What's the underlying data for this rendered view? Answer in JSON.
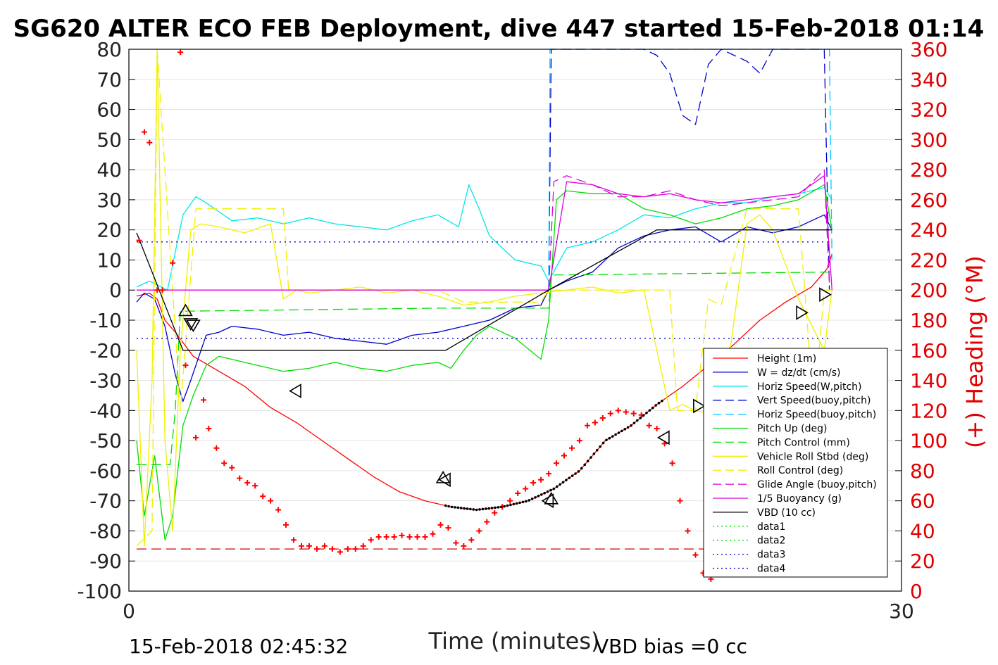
{
  "chart_data": {
    "type": "line",
    "title": "SG620 ALTER ECO FEB Deployment, dive 447 started 15-Feb-2018 01:14",
    "xlabel": "Time (minutes)",
    "ylabel_right": "(+) Heading (°M)",
    "xlim": [
      0,
      30
    ],
    "ylim_left": [
      -100,
      80
    ],
    "ylim_right": [
      0,
      360
    ],
    "x_ticks": [
      "0",
      "30"
    ],
    "y_ticks_left": [
      "80",
      "70",
      "60",
      "50",
      "40",
      "30",
      "20",
      "10",
      "0",
      "-10",
      "-20",
      "-30",
      "-40",
      "-50",
      "-60",
      "-70",
      "-80",
      "-90",
      "-100"
    ],
    "y_ticks_right": [
      "360",
      "340",
      "320",
      "300",
      "280",
      "260",
      "240",
      "220",
      "200",
      "180",
      "160",
      "140",
      "120",
      "100",
      "80",
      "60",
      "40",
      "20",
      "0"
    ],
    "grid": "horizontal",
    "legend_position": "bottom-right",
    "footer_left": "15-Feb-2018 02:45:32",
    "footer_right": "VBD bias =0 cc",
    "colors": {
      "height": "#ff0000",
      "w": "#0000cc",
      "horiz_speed_w": "#00e6e6",
      "vert_speed_buoy": "#0000cc",
      "horiz_speed_buoy": "#00c8ff",
      "pitch_up": "#00dd00",
      "pitch_control": "#00dd00",
      "roll": "#f0f000",
      "roll_control": "#f0f000",
      "glide_angle": "#dd00dd",
      "buoyancy": "#dd00dd",
      "vbd": "#000000",
      "heading": "#ff0000"
    },
    "series": [
      {
        "name": "Height (1m)",
        "color": "#ff0000",
        "dash": "solid",
        "x": [
          0.3,
          0.8,
          1.1,
          1.4,
          1.8,
          2.5,
          3.5,
          4.5,
          5.5,
          6.5,
          7.5,
          8.5,
          9.5,
          10.5,
          11.5,
          12.5,
          13.5,
          14.5,
          15.5,
          16.5,
          17.5,
          18.5,
          19.5,
          20.5,
          21.5,
          22.5,
          23.5,
          24.5,
          25.5,
          26.5,
          27.1,
          27.3
        ],
        "y": [
          -2,
          -1,
          -3,
          -10,
          -14,
          -22,
          -27,
          -32,
          -39,
          -44,
          -50,
          -56,
          -62,
          -67,
          -70,
          -72,
          -73,
          -72,
          -70,
          -66,
          -60,
          -50,
          -45,
          -38,
          -32,
          -25,
          -18,
          -10,
          -4,
          1,
          7,
          12
        ]
      },
      {
        "name": "W = dz/dt (cm/s)",
        "color": "#0000cc",
        "dash": "solid",
        "x": [
          0.3,
          0.6,
          1.0,
          1.4,
          1.8,
          2.1,
          2.4,
          3.0,
          3.5,
          4.0,
          5.0,
          6.0,
          7.0,
          8.0,
          9.0,
          10.0,
          11.0,
          12.0,
          13.0,
          14.0,
          15.0,
          16.0,
          16.3,
          17.0,
          18.0,
          19.0,
          20.0,
          21.0,
          22.0,
          23.0,
          24.0,
          25.0,
          26.0,
          26.5,
          27.0,
          27.3
        ],
        "y": [
          -4,
          -1,
          -3,
          -12,
          -28,
          -37,
          -30,
          -15,
          -14,
          -12,
          -13,
          -15,
          -14,
          -16,
          -17,
          -18,
          -15,
          -14,
          -12,
          -10,
          -6,
          -5,
          0,
          3,
          6,
          14,
          18,
          20,
          21,
          16,
          21,
          19,
          21,
          23,
          25,
          20
        ]
      },
      {
        "name": "Horiz Speed(W,pitch)",
        "color": "#00e6e6",
        "dash": "solid",
        "x": [
          0.3,
          0.8,
          1.5,
          2.1,
          2.6,
          3.0,
          3.5,
          4.0,
          5.0,
          6.0,
          7.0,
          8.0,
          9.0,
          10.0,
          11.0,
          12.0,
          12.8,
          13.2,
          13.6,
          14.0,
          15.0,
          16.0,
          16.3,
          17.0,
          18.0,
          19.0,
          20.0,
          21.0,
          22.0,
          23.0,
          24.0,
          25.0,
          26.0,
          27.0,
          27.3
        ],
        "y": [
          1,
          3,
          0,
          25,
          31,
          29,
          26,
          23,
          24,
          22,
          24,
          22,
          21,
          20,
          23,
          25,
          21,
          35,
          27,
          18,
          10,
          8,
          3,
          14,
          16,
          20,
          25,
          24,
          27,
          29,
          29,
          31,
          32,
          34,
          30
        ]
      },
      {
        "name": "Vert Speed(buoy,pitch)",
        "color": "#0000cc",
        "dash": "dashed",
        "x": [
          16.3,
          16.4,
          17.0,
          18.0,
          19.0,
          20.0,
          20.5,
          21.0,
          21.5,
          22.0,
          22.5,
          23.0,
          23.5,
          24.0,
          24.5,
          25.0,
          25.5,
          26.0,
          26.5,
          27.0,
          27.2
        ],
        "y": [
          0,
          80,
          80,
          80,
          80,
          80,
          78,
          72,
          58,
          55,
          75,
          80,
          78,
          76,
          72,
          80,
          80,
          80,
          80,
          80,
          0
        ]
      },
      {
        "name": "Horiz Speed(buoy,pitch)",
        "color": "#00c8ff",
        "dash": "dashed",
        "x": [
          16.3,
          16.35,
          16.45,
          27.1,
          27.2,
          27.3
        ],
        "y": [
          0,
          80,
          80,
          80,
          80,
          10
        ]
      },
      {
        "name": "Pitch Up (deg)",
        "color": "#00dd00",
        "dash": "solid",
        "x": [
          0.3,
          0.6,
          1.0,
          1.4,
          1.7,
          2.1,
          2.5,
          3.0,
          3.5,
          4.0,
          5.0,
          6.0,
          7.0,
          8.0,
          9.0,
          10.0,
          11.0,
          12.0,
          12.5,
          13.0,
          13.5,
          14.0,
          15.0,
          16.0,
          16.3,
          16.6,
          17.0,
          18.0,
          19.0,
          20.0,
          21.0,
          22.0,
          23.0,
          24.0,
          25.0,
          26.0,
          27.0,
          27.3
        ],
        "y": [
          -50,
          -75,
          -55,
          -83,
          -75,
          -45,
          -35,
          -25,
          -22,
          -23,
          -25,
          -27,
          -26,
          -24,
          -26,
          -27,
          -25,
          -24,
          -26,
          -20,
          -15,
          -12,
          -16,
          -23,
          -10,
          30,
          33,
          32,
          32,
          27,
          25,
          22,
          24,
          27,
          28,
          30,
          35,
          20
        ]
      },
      {
        "name": "Pitch Control (mm)",
        "color": "#00dd00",
        "dash": "dashed",
        "x": [
          0.3,
          1.6,
          1.8,
          2.0,
          2.2,
          12.0,
          16.3,
          16.4,
          27.3
        ],
        "y": [
          -58,
          -58,
          -40,
          -7,
          -7,
          -6,
          -6,
          5,
          6
        ]
      },
      {
        "name": "Vehicle Roll Stbd (deg)",
        "color": "#f0f000",
        "dash": "solid",
        "x": [
          0.3,
          0.6,
          0.9,
          1.1,
          1.4,
          1.7,
          2.0,
          2.4,
          2.8,
          3.5,
          4.5,
          5.5,
          6.0,
          6.5,
          7.0,
          8.0,
          9.0,
          10.0,
          11.0,
          12.0,
          13.0,
          14.0,
          15.0,
          16.0,
          17.0,
          18.0,
          19.0,
          20.0,
          20.5,
          21.0,
          21.5,
          22.0,
          23.0,
          24.0,
          24.5,
          25.0,
          26.0,
          27.0,
          27.3
        ],
        "y": [
          -20,
          -85,
          -30,
          80,
          -50,
          -80,
          -20,
          20,
          22,
          21,
          19,
          22,
          -3,
          0,
          -1,
          0,
          1,
          -1,
          0,
          -2,
          -5,
          -4,
          -2,
          -1,
          0,
          1,
          -1,
          0,
          -20,
          -40,
          -38,
          -40,
          -42,
          22,
          25,
          20,
          -3,
          -20,
          0
        ]
      },
      {
        "name": "Roll Control (deg)",
        "color": "#f0f000",
        "dash": "dashed",
        "x": [
          0.3,
          0.9,
          1.1,
          2.0,
          2.6,
          3.5,
          6.0,
          6.2,
          7.0,
          12.0,
          13.0,
          16.0,
          16.3,
          21.0,
          21.3,
          22.0,
          22.5,
          23.0,
          24.0,
          25.0,
          26.0,
          26.6,
          27.0,
          27.3
        ],
        "y": [
          -85,
          -80,
          80,
          -40,
          27,
          27,
          27,
          0,
          0,
          0,
          -4,
          -4,
          0,
          0,
          -40,
          -40,
          -3,
          -5,
          27,
          27,
          27,
          -40,
          0,
          0
        ]
      },
      {
        "name": "Glide Angle (buoy,pitch)",
        "color": "#dd00dd",
        "dash": "dashed",
        "x": [
          16.3,
          16.5,
          17.0,
          18.0,
          19.0,
          20.0,
          21.0,
          22.0,
          23.0,
          24.0,
          25.0,
          26.0,
          27.0,
          27.2
        ],
        "y": [
          0,
          36,
          38,
          35,
          31,
          31,
          33,
          30,
          28,
          29,
          30,
          31,
          40,
          2
        ]
      },
      {
        "name": "1/5 Buoyancy (g)",
        "color": "#dd00dd",
        "dash": "solid",
        "x": [
          0.3,
          16.3,
          17.0,
          18.0,
          19.0,
          20.0,
          21.0,
          22.0,
          23.0,
          24.0,
          25.0,
          26.0,
          27.0,
          27.3
        ],
        "y": [
          0,
          0,
          36,
          35,
          32,
          31,
          32,
          30,
          29,
          30,
          31,
          32,
          38,
          0
        ]
      },
      {
        "name": "VBD (10 cc)",
        "color": "#000000",
        "dash": "solid",
        "x": [
          0.3,
          2.1,
          12.3,
          16.3,
          20.5,
          27.3
        ],
        "y": [
          19,
          -20,
          -20,
          0,
          20,
          20
        ]
      },
      {
        "name": "data1",
        "color": "#00dd00",
        "dash": "dotted",
        "x": [],
        "y": []
      },
      {
        "name": "data2",
        "color": "#00dd00",
        "dash": "dotted",
        "x": [],
        "y": []
      },
      {
        "name": "data3",
        "color": "#0000cc",
        "dash": "dotted",
        "x": [
          0.3,
          27.3
        ],
        "y": [
          16,
          16
        ]
      },
      {
        "name": "data4",
        "color": "#0000cc",
        "dash": "dotted",
        "x": [
          0.3,
          27.3
        ],
        "y": [
          -16,
          -16
        ]
      }
    ],
    "ref_lines": [
      {
        "axis": "left",
        "y": -86,
        "color": "#cc0000",
        "dash": "dashed",
        "x": [
          0.3,
          27.3
        ]
      }
    ],
    "triangles": {
      "up": [
        [
          2.2,
          -7
        ],
        [
          12.2,
          -62.5
        ],
        [
          16.4,
          -69.5
        ]
      ],
      "down": [
        [
          2.4,
          -11
        ],
        [
          2.5,
          -11.5
        ]
      ],
      "left": [
        [
          6.5,
          -33.5
        ],
        [
          12.3,
          -63
        ],
        [
          16.3,
          -70
        ],
        [
          20.8,
          -49
        ]
      ],
      "right": [
        [
          22.1,
          -38.5
        ],
        [
          23.2,
          -31.5
        ],
        [
          24.4,
          -23.5
        ],
        [
          26.1,
          -7.5
        ],
        [
          27.0,
          -1.5
        ]
      ]
    },
    "vbd_dots": {
      "x_start": 12.3,
      "x_end": 20.8
    },
    "heading_points": {
      "x": [
        0.4,
        0.6,
        0.8,
        1.1,
        1.3,
        1.7,
        2.0,
        2.2,
        2.6,
        2.9,
        3.1,
        3.4,
        3.7,
        4.0,
        4.3,
        4.6,
        4.9,
        5.2,
        5.5,
        5.8,
        6.1,
        6.4,
        6.7,
        7.0,
        7.3,
        7.6,
        7.9,
        8.2,
        8.5,
        8.8,
        9.1,
        9.4,
        9.7,
        10.0,
        10.3,
        10.6,
        10.9,
        11.2,
        11.5,
        11.8,
        12.1,
        12.4,
        12.7,
        13.0,
        13.3,
        13.6,
        13.9,
        14.2,
        14.5,
        14.8,
        15.1,
        15.4,
        15.7,
        16.0,
        16.3,
        16.6,
        16.9,
        17.2,
        17.5,
        17.8,
        18.1,
        18.4,
        18.7,
        19.0,
        19.3,
        19.6,
        19.9,
        20.2,
        20.5,
        20.8,
        21.1,
        21.4,
        21.7,
        22.0,
        22.3,
        22.6,
        22.9,
        23.2,
        23.5,
        23.8,
        24.1,
        24.4,
        24.7,
        25.0,
        25.3,
        25.6,
        25.9,
        26.2,
        26.5,
        26.8,
        27.1,
        27.4
      ],
      "y": [
        233,
        305,
        298,
        200,
        200,
        218,
        358,
        150,
        102,
        127,
        108,
        95,
        85,
        82,
        75,
        72,
        70,
        63,
        60,
        54,
        44,
        34,
        30,
        30,
        28,
        30,
        28,
        26,
        28,
        28,
        30,
        34,
        36,
        36,
        36,
        37,
        36,
        36,
        36,
        38,
        44,
        42,
        32,
        30,
        34,
        40,
        46,
        52,
        56,
        60,
        65,
        68,
        72,
        74,
        78,
        85,
        90,
        95,
        100,
        110,
        112,
        115,
        118,
        120,
        119,
        118,
        117,
        110,
        108,
        98,
        85,
        60,
        40,
        24,
        12,
        8,
        14,
        24,
        30,
        36,
        38,
        40,
        42,
        40,
        44,
        45,
        42,
        40,
        34,
        30,
        25,
        15
      ]
    }
  }
}
